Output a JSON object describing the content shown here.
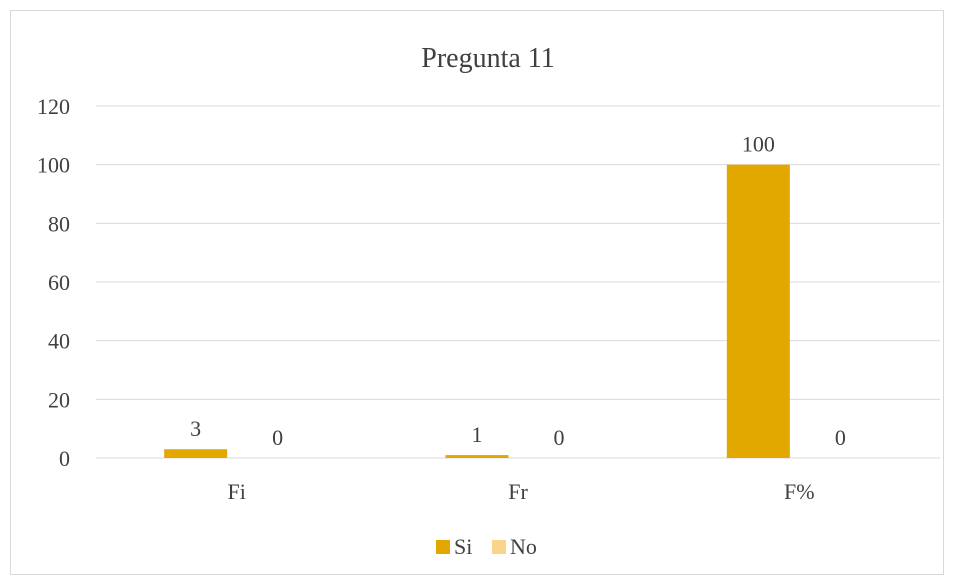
{
  "chart_data": {
    "type": "bar",
    "title": "Pregunta 11",
    "categories": [
      "Fi",
      "Fr",
      "F%"
    ],
    "series": [
      {
        "name": "Si",
        "values": [
          3,
          1,
          100
        ],
        "color": "#e3a800"
      },
      {
        "name": "No",
        "values": [
          0,
          0,
          0
        ],
        "color": "#f9d58c"
      }
    ],
    "ylim": [
      0,
      120
    ],
    "yticks": [
      0,
      20,
      40,
      60,
      80,
      100,
      120
    ],
    "grid": true,
    "legend": "bottom",
    "data_labels": true
  }
}
